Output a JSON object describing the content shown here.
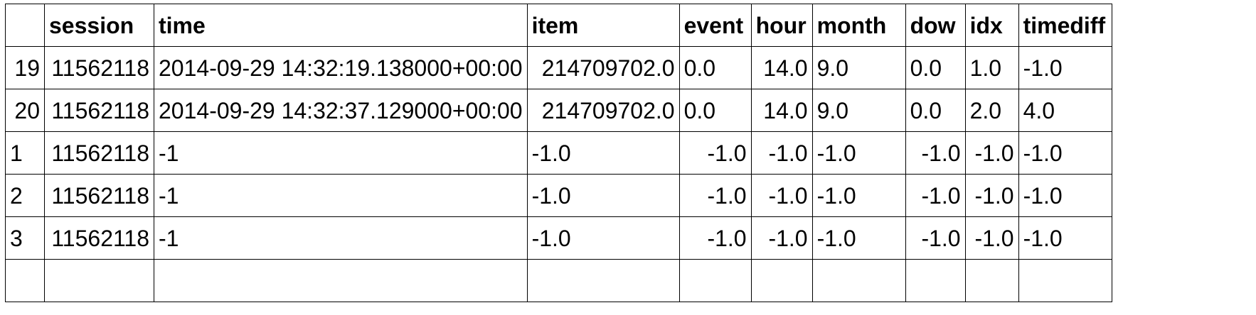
{
  "table": {
    "columns": [
      "",
      "session",
      "time",
      "item",
      "event",
      "hour",
      "month",
      "dow",
      "idx",
      "timediff"
    ],
    "rows": [
      [
        "19",
        "11562118",
        "2014-09-29 14:32:19.138000+00:00",
        "214709702.0",
        "0.0",
        "14.0",
        "9.0",
        "0.0",
        "1.0",
        "-1.0"
      ],
      [
        "20",
        "11562118",
        "2014-09-29 14:32:37.129000+00:00",
        "214709702.0",
        "0.0",
        "14.0",
        "9.0",
        "0.0",
        "2.0",
        "4.0"
      ],
      [
        "1",
        "11562118",
        "-1",
        "-1.0",
        "-1.0",
        "-1.0",
        "-1.0",
        "-1.0",
        "-1.0",
        "-1.0"
      ],
      [
        "2",
        "11562118",
        "-1",
        "-1.0",
        "-1.0",
        "-1.0",
        "-1.0",
        "-1.0",
        "-1.0",
        "-1.0"
      ],
      [
        "3",
        "11562118",
        "-1",
        "-1.0",
        "-1.0",
        "-1.0",
        "-1.0",
        "-1.0",
        "-1.0",
        "-1.0"
      ]
    ]
  }
}
